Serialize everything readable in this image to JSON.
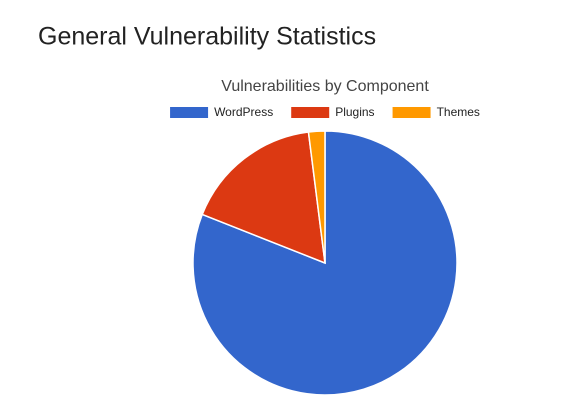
{
  "header": {
    "title": "General Vulnerability Statistics"
  },
  "chart_data": {
    "type": "pie",
    "title": "Vulnerabilities by Component",
    "categories": [
      "WordPress",
      "Plugins",
      "Themes"
    ],
    "values": [
      81,
      17,
      2
    ],
    "colors": [
      "#3366cc",
      "#dc3912",
      "#ff9900"
    ],
    "legend": "top"
  }
}
